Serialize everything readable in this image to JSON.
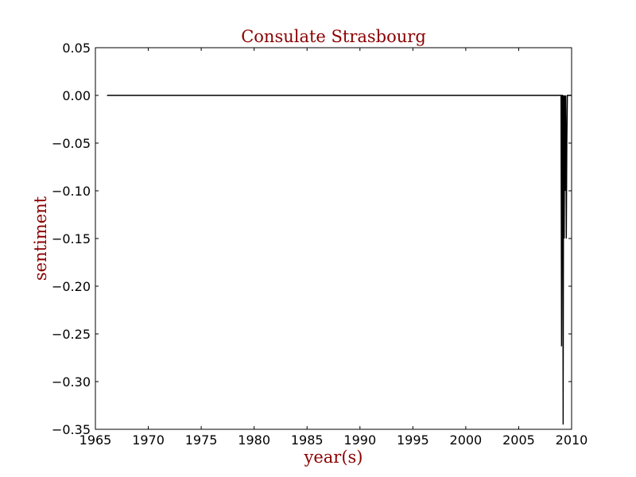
{
  "chart_data": {
    "type": "line",
    "title": "Consulate Strasbourg",
    "xlabel": "year(s)",
    "ylabel": "sentiment",
    "xlim": [
      1965,
      2010
    ],
    "ylim": [
      -0.35,
      0.05
    ],
    "x_ticks": [
      1965,
      1970,
      1975,
      1980,
      1985,
      1990,
      1995,
      2000,
      2005,
      2010
    ],
    "y_ticks": [
      0.05,
      0.0,
      -0.05,
      -0.1,
      -0.15,
      -0.2,
      -0.25,
      -0.3,
      -0.35
    ],
    "x_tick_labels": [
      "1965",
      "1970",
      "1975",
      "1980",
      "1985",
      "1990",
      "1995",
      "2000",
      "2005",
      "2010"
    ],
    "y_tick_labels": [
      "0.05",
      "0.00",
      "−0.05",
      "−0.10",
      "−0.15",
      "−0.20",
      "−0.25",
      "−0.30",
      "−0.35"
    ],
    "grid": false,
    "colors": {
      "title": "#8b0000",
      "axis_label": "#8b0000",
      "line": "#000000"
    },
    "series": [
      {
        "x": [
          1966.1,
          2009.0,
          2009.05,
          2009.1,
          2009.15,
          2009.2,
          2009.25,
          2009.3,
          2009.35,
          2009.4,
          2009.45,
          2009.5,
          2009.55,
          2009.6,
          2009.65,
          2009.7,
          2009.75,
          2009.8,
          2009.85,
          2009.9,
          2009.95
        ],
        "y": [
          0.0,
          0.0,
          -0.263,
          0.0,
          0.0,
          -0.345,
          0.0,
          -0.15,
          0.0,
          -0.1,
          0.0,
          -0.15,
          -0.05,
          0.0,
          0.0,
          0.0,
          0.0,
          0.0,
          0.0,
          0.0,
          0.0
        ]
      }
    ]
  }
}
